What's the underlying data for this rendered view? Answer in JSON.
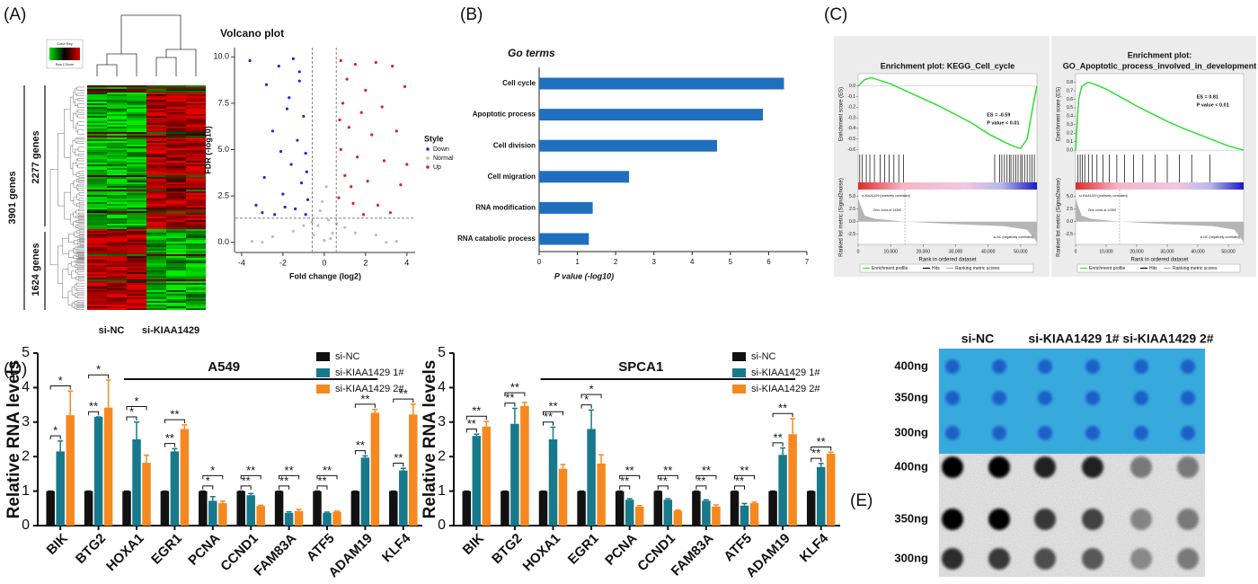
{
  "figure": {
    "panel_labels": [
      "(A)",
      "(B)",
      "(C)",
      "(D)",
      "(E)"
    ],
    "heatmap": {
      "color_key": "Color Key",
      "key_label": "Row Z-Score",
      "total": "3901 genes",
      "up": "2277 genes",
      "down": "1624 genes",
      "groups": [
        "si-NC",
        "si-KIAA1429"
      ]
    },
    "blot": {
      "columns": [
        "si-NC",
        "si-KIAA1429 1#",
        "si-KIAA1429 2#"
      ],
      "rows": [
        "400ng",
        "350ng",
        "300ng"
      ]
    }
  },
  "chart_data": [
    {
      "type": "scatter",
      "title": "Volcano plot",
      "xlabel": "Fold change (log2)",
      "ylabel": "FDR (-log10)",
      "legend_title": "Style",
      "xlim": [
        -4.3,
        4.4
      ],
      "ylim": [
        -0.5,
        10.5
      ],
      "xticks": [
        -4,
        -2,
        0,
        2,
        4
      ],
      "yticks": [
        {
          "value": 0,
          "label": "0.0"
        },
        2.5,
        {
          "value": 5,
          "label": "5.0"
        },
        7.5,
        {
          "value": 10,
          "label": "10.0"
        }
      ],
      "vlines": [
        -0.58,
        0.58
      ],
      "hline": 1.3,
      "series": [
        {
          "name": "Down",
          "color": "#1f2bd6",
          "x": [
            -3.6,
            -2.8,
            -2.2,
            -1.5,
            -1.2,
            -1.8,
            -1.0,
            -2.5,
            -1.3,
            -0.9,
            -1.6,
            -2.9,
            -1.1,
            -3.3,
            -2.0,
            -0.8,
            -1.4,
            -2.4,
            -0.9,
            -1.7,
            -1.2,
            -2.1,
            -0.85,
            -1.9,
            -3.0
          ],
          "values": [
            9.8,
            8.5,
            9.5,
            9.9,
            8.7,
            7.2,
            6.8,
            6.0,
            5.5,
            4.8,
            4.2,
            3.5,
            3.2,
            2.0,
            2.6,
            2.3,
            1.8,
            1.5,
            1.5,
            7.8,
            9.2,
            4.9,
            3.8,
            1.9,
            1.6
          ]
        },
        {
          "name": "Normal",
          "color": "#bdbdbd",
          "x": [
            -0.3,
            0.2,
            -0.5,
            0.4,
            -0.1,
            0.1,
            -0.2,
            0.3,
            -1.5,
            1.5,
            -2.5,
            2.5,
            -3.0,
            3.0,
            -0.6,
            0.6,
            0.0,
            -1.0,
            1.0,
            -3.5,
            3.5
          ],
          "values": [
            0.9,
            1.2,
            0.4,
            0.5,
            2.2,
            3.0,
            1.7,
            0.2,
            0.6,
            0.5,
            0.3,
            0.4,
            0.0,
            0.0,
            1.1,
            1.0,
            0.1,
            0.9,
            0.8,
            0.05,
            0.05
          ]
        },
        {
          "name": "Up",
          "color": "#e0201b",
          "x": [
            0.8,
            1.5,
            2.5,
            3.3,
            1.1,
            2.0,
            3.9,
            0.9,
            1.8,
            2.8,
            1.2,
            2.3,
            3.5,
            0.8,
            1.6,
            2.9,
            1.0,
            2.1,
            3.7,
            0.7,
            1.4,
            2.6,
            3.2,
            1.9,
            4.0,
            1.3,
            0.75
          ],
          "values": [
            9.8,
            9.6,
            9.7,
            9.5,
            8.8,
            8.2,
            8.4,
            7.5,
            7.0,
            7.3,
            6.2,
            5.8,
            6.0,
            5.0,
            4.6,
            4.4,
            3.6,
            3.3,
            3.1,
            2.4,
            2.1,
            2.0,
            1.6,
            1.5,
            4.2,
            3.0,
            6.6
          ]
        }
      ]
    },
    {
      "type": "barh",
      "title": "Go terms",
      "xlabel": "P value (-log10)",
      "color": "#1f6fbf",
      "categories": [
        "Cell cycle",
        "Apoptotic process",
        "Cell division",
        "Cell migration",
        "RNA modification",
        "RNA catabolic process"
      ],
      "values": [
        6.4,
        5.85,
        4.65,
        2.35,
        1.4,
        1.3
      ],
      "xlim": [
        0,
        7
      ],
      "xticks": [
        0,
        1,
        2,
        3,
        4,
        5,
        6,
        7
      ]
    },
    {
      "type": "gsea",
      "title": [
        "Enrichment plot: KEGG_Cell_cycle"
      ],
      "ylabel": "Enrichment score (ES)",
      "ylabel2": "Ranked list metric (Signal2noise)",
      "xlabel": "Rank in ordered dataset",
      "annotations": [
        "ES = -0.59",
        "P value < 0.01"
      ],
      "label_pos": "si-KIAA1429 (positively correlated)",
      "label_neg": "si-NC (negatively correlated)",
      "zero_cross": "Zero cross at 14390",
      "zero_cross_rank": 14390,
      "legend": [
        "Enrichment profile",
        "Hits",
        "Ranking metric scores"
      ],
      "color": "#2ee02e",
      "x": [
        0,
        2000,
        4000,
        6000,
        10000,
        15000,
        20000,
        25000,
        30000,
        35000,
        40000,
        45000,
        48000,
        50000,
        52000,
        54000,
        55000
      ],
      "values": [
        0,
        0.06,
        0.08,
        0.06,
        0.02,
        -0.05,
        -0.12,
        -0.19,
        -0.27,
        -0.35,
        -0.45,
        -0.53,
        -0.57,
        -0.59,
        -0.5,
        -0.15,
        0
      ],
      "hits": [
        500,
        1200,
        2500,
        3600,
        5000,
        6800,
        8200,
        9500,
        11000,
        12500,
        14000,
        42000,
        43500,
        44200,
        45000,
        45800,
        46500,
        47000,
        47800,
        48500,
        49200,
        50000,
        50500,
        51200,
        52000,
        52800,
        53500,
        54200
      ],
      "metric_x": [
        0,
        2000,
        5000,
        14390,
        30000,
        45000,
        52000,
        55000
      ],
      "metric": [
        4.5,
        1.2,
        0.6,
        0,
        -0.5,
        -0.9,
        -1.6,
        -4
      ],
      "xlim": [
        0,
        55000
      ],
      "xticks": [
        0,
        {
          "value": 10000,
          "label": "10,000"
        },
        {
          "value": 20000,
          "label": "20,000"
        },
        {
          "value": 30000,
          "label": "30,000"
        },
        {
          "value": 40000,
          "label": "40,000"
        },
        {
          "value": 50000,
          "label": "50,000"
        }
      ],
      "ylim": [
        -0.63,
        0.1
      ],
      "yticks": [
        {
          "value": 0,
          "label": "0.0"
        },
        -0.1,
        -0.2,
        -0.3,
        -0.4,
        -0.5,
        -0.6
      ],
      "y2lim": [
        -4.5,
        6
      ],
      "y2ticks": [
        {
          "value": 5,
          "label": "5.0"
        },
        2.5,
        {
          "value": 0,
          "label": "0.0"
        },
        -2.5
      ]
    },
    {
      "type": "gsea",
      "title": [
        "Enrichment plot:",
        "GO_Apoptotic_process_involved_in_development"
      ],
      "ylabel": "Enrichment score (ES)",
      "ylabel2": "Ranked list metric (Signal2noise)",
      "xlabel": "Rank in ordered dataset",
      "annotations": [
        "ES = 0.81",
        "P value < 0.01"
      ],
      "label_pos": "si-KIAA1429 (positively correlated)",
      "label_neg": "si-NC (negatively correlated)",
      "zero_cross": "Zero cross at 14390",
      "zero_cross_rank": 14390,
      "legend": [
        "Enrichment profile",
        "Hits",
        "Ranking metric scores"
      ],
      "color": "#2ee02e",
      "x": [
        0,
        1000,
        2000,
        4000,
        6000,
        10000,
        15000,
        20000,
        25000,
        30000,
        35000,
        40000,
        45000,
        50000,
        55000
      ],
      "values": [
        0,
        0.6,
        0.75,
        0.8,
        0.78,
        0.72,
        0.62,
        0.52,
        0.43,
        0.34,
        0.26,
        0.19,
        0.12,
        0.05,
        0
      ],
      "hits": [
        800,
        1500,
        2200,
        3000,
        4200,
        5500,
        7000,
        9000,
        11000,
        13500,
        16000,
        19000,
        22000,
        26000,
        30000,
        34000,
        38000,
        44000
      ],
      "metric_x": [
        0,
        2000,
        5000,
        14390,
        30000,
        45000,
        52000,
        55000
      ],
      "metric": [
        4.5,
        1.2,
        0.6,
        0,
        -0.5,
        -0.9,
        -1.6,
        -4
      ],
      "xlim": [
        0,
        55000
      ],
      "xticks": [
        0,
        {
          "value": 10000,
          "label": "10,000"
        },
        {
          "value": 20000,
          "label": "20,000"
        },
        {
          "value": 30000,
          "label": "30,000"
        },
        {
          "value": 40000,
          "label": "40,000"
        },
        {
          "value": 50000,
          "label": "50,000"
        }
      ],
      "ylim": [
        -0.03,
        0.88
      ],
      "yticks": [
        {
          "value": 0,
          "label": "0.0"
        },
        0.1,
        0.2,
        0.3,
        0.4,
        0.5,
        0.6,
        0.7,
        0.8
      ],
      "y2lim": [
        -4.5,
        6
      ],
      "y2ticks": [
        {
          "value": 5,
          "label": "5.0"
        },
        2.5,
        {
          "value": 0,
          "label": "0.0"
        },
        -2.5
      ]
    },
    {
      "type": "grouped_bar",
      "title": "A549",
      "ylabel": "Relative RNA levels",
      "group_span": [
        2,
        8
      ],
      "categories": [
        "BIK",
        "BTG2",
        "HOXA1",
        "EGR1",
        "PCNA",
        "CCND1",
        "FAM83A",
        "ATF5",
        "ADAM19",
        "KLF4"
      ],
      "ylim": [
        0,
        5
      ],
      "yticks": [
        0,
        1,
        2,
        3,
        4,
        5
      ],
      "series": [
        {
          "name": "si-NC",
          "color": "#111111",
          "values": [
            1,
            1,
            1,
            1,
            1,
            1,
            1,
            1,
            1,
            1
          ],
          "errors": [
            0,
            0,
            0,
            0,
            0,
            0,
            0,
            0,
            0,
            0
          ]
        },
        {
          "name": "si-KIAA1429 1#",
          "color": "#17798b",
          "values": [
            2.15,
            3.15,
            2.5,
            2.15,
            0.72,
            0.88,
            0.37,
            0.37,
            1.97,
            1.6
          ],
          "errors": [
            0.3,
            0,
            0.5,
            0.08,
            0.12,
            0.05,
            0.03,
            0.02,
            0.05,
            0.06
          ]
        },
        {
          "name": "si-KIAA1429 2#",
          "color": "#f5891f",
          "values": [
            3.2,
            3.42,
            1.82,
            2.8,
            0.65,
            0.57,
            0.42,
            0.4,
            3.27,
            3.22
          ],
          "errors": [
            0.7,
            0.8,
            0.22,
            0.12,
            0.06,
            0.02,
            0.05,
            0.02,
            0.1,
            0.3
          ]
        }
      ],
      "significance": [
        [
          "*",
          "*"
        ],
        [
          "**",
          "*"
        ],
        [
          "*",
          "*"
        ],
        [
          "**",
          "**"
        ],
        [
          "*",
          "*"
        ],
        [
          "**",
          "**"
        ],
        [
          "**",
          "**"
        ],
        [
          "**",
          "**"
        ],
        [
          "**",
          "**"
        ],
        [
          "**",
          "**"
        ]
      ]
    },
    {
      "type": "grouped_bar",
      "title": "SPCA1",
      "ylabel": "Relative RNA levels",
      "group_span": [
        2,
        8
      ],
      "categories": [
        "BIK",
        "BTG2",
        "HOXA1",
        "EGR1",
        "PCNA",
        "CCND1",
        "FAM83A",
        "ATF5",
        "ADAM19",
        "KLF4"
      ],
      "ylim": [
        0,
        5
      ],
      "yticks": [
        0,
        1,
        2,
        3,
        4,
        5
      ],
      "series": [
        {
          "name": "si-NC",
          "color": "#111111",
          "values": [
            1,
            1,
            1,
            1,
            1,
            1,
            1,
            1,
            1,
            1
          ],
          "errors": [
            0,
            0,
            0,
            0,
            0,
            0,
            0,
            0,
            0,
            0
          ]
        },
        {
          "name": "si-KIAA1429 1#",
          "color": "#17798b",
          "values": [
            2.6,
            2.95,
            2.5,
            2.8,
            0.75,
            0.75,
            0.72,
            0.58,
            2.05,
            1.7
          ],
          "errors": [
            0.05,
            0.45,
            0.35,
            0.55,
            0.03,
            0.03,
            0.03,
            0.06,
            0.2,
            0.1
          ]
        },
        {
          "name": "si-KIAA1429 2#",
          "color": "#f5891f",
          "values": [
            2.87,
            3.47,
            1.65,
            1.8,
            0.55,
            0.43,
            0.55,
            0.65,
            2.65,
            2.08
          ],
          "errors": [
            0.15,
            0.1,
            0.12,
            0.25,
            0.03,
            0.02,
            0.05,
            0.03,
            0.45,
            0.05
          ]
        }
      ],
      "significance": [
        [
          "**",
          "**"
        ],
        [
          "**",
          "**"
        ],
        [
          "**",
          "**"
        ],
        [
          "*",
          "*"
        ],
        [
          "**",
          "**"
        ],
        [
          "**",
          "**"
        ],
        [
          "**",
          "**"
        ],
        [
          "**",
          "**"
        ],
        [
          "**",
          "**"
        ],
        [
          "**",
          "**"
        ]
      ]
    }
  ]
}
